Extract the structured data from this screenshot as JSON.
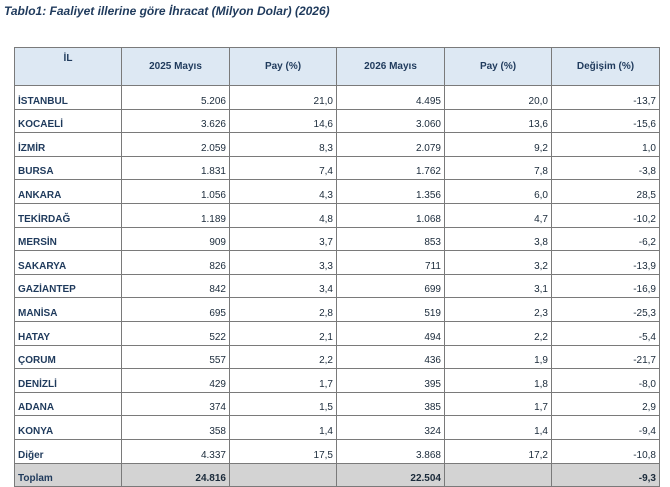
{
  "caption": "Tablo1: Faaliyet illerine göre İhracat (Milyon Dolar) (2026)",
  "columns": [
    "İL",
    "2025 Mayıs",
    "Pay  (%)",
    "2026 Mayıs",
    "Pay  (%)",
    "Değişim (%)"
  ],
  "rows": [
    {
      "il": "İSTANBUL",
      "y2025": "5.206",
      "pay2025": "21,0",
      "y2026": "4.495",
      "pay2026": "20,0",
      "degisim": "-13,7"
    },
    {
      "il": "KOCAELİ",
      "y2025": "3.626",
      "pay2025": "14,6",
      "y2026": "3.060",
      "pay2026": "13,6",
      "degisim": "-15,6"
    },
    {
      "il": "İZMİR",
      "y2025": "2.059",
      "pay2025": "8,3",
      "y2026": "2.079",
      "pay2026": "9,2",
      "degisim": "1,0"
    },
    {
      "il": "BURSA",
      "y2025": "1.831",
      "pay2025": "7,4",
      "y2026": "1.762",
      "pay2026": "7,8",
      "degisim": "-3,8"
    },
    {
      "il": "ANKARA",
      "y2025": "1.056",
      "pay2025": "4,3",
      "y2026": "1.356",
      "pay2026": "6,0",
      "degisim": "28,5"
    },
    {
      "il": "TEKİRDAĞ",
      "y2025": "1.189",
      "pay2025": "4,8",
      "y2026": "1.068",
      "pay2026": "4,7",
      "degisim": "-10,2"
    },
    {
      "il": "MERSİN",
      "y2025": "909",
      "pay2025": "3,7",
      "y2026": "853",
      "pay2026": "3,8",
      "degisim": "-6,2"
    },
    {
      "il": "SAKARYA",
      "y2025": "826",
      "pay2025": "3,3",
      "y2026": "711",
      "pay2026": "3,2",
      "degisim": "-13,9"
    },
    {
      "il": "GAZİANTEP",
      "y2025": "842",
      "pay2025": "3,4",
      "y2026": "699",
      "pay2026": "3,1",
      "degisim": "-16,9"
    },
    {
      "il": "MANİSA",
      "y2025": "695",
      "pay2025": "2,8",
      "y2026": "519",
      "pay2026": "2,3",
      "degisim": "-25,3"
    },
    {
      "il": "HATAY",
      "y2025": "522",
      "pay2025": "2,1",
      "y2026": "494",
      "pay2026": "2,2",
      "degisim": "-5,4"
    },
    {
      "il": "ÇORUM",
      "y2025": "557",
      "pay2025": "2,2",
      "y2026": "436",
      "pay2026": "1,9",
      "degisim": "-21,7"
    },
    {
      "il": "DENİZLİ",
      "y2025": "429",
      "pay2025": "1,7",
      "y2026": "395",
      "pay2026": "1,8",
      "degisim": "-8,0"
    },
    {
      "il": "ADANA",
      "y2025": "374",
      "pay2025": "1,5",
      "y2026": "385",
      "pay2026": "1,7",
      "degisim": "2,9"
    },
    {
      "il": "KONYA",
      "y2025": "358",
      "pay2025": "1,4",
      "y2026": "324",
      "pay2026": "1,4",
      "degisim": "-9,4"
    },
    {
      "il": "Diğer",
      "y2025": "4.337",
      "pay2025": "17,5",
      "y2026": "3.868",
      "pay2026": "17,2",
      "degisim": "-10,8"
    }
  ],
  "total": {
    "il": "Toplam",
    "y2025": "24.816",
    "pay2025": "",
    "y2026": "22.504",
    "pay2026": "",
    "degisim": "-9,3"
  },
  "colors": {
    "header_bg": "#dde8f3",
    "total_bg": "#d3d3d3",
    "text": "#1f3a5c"
  }
}
